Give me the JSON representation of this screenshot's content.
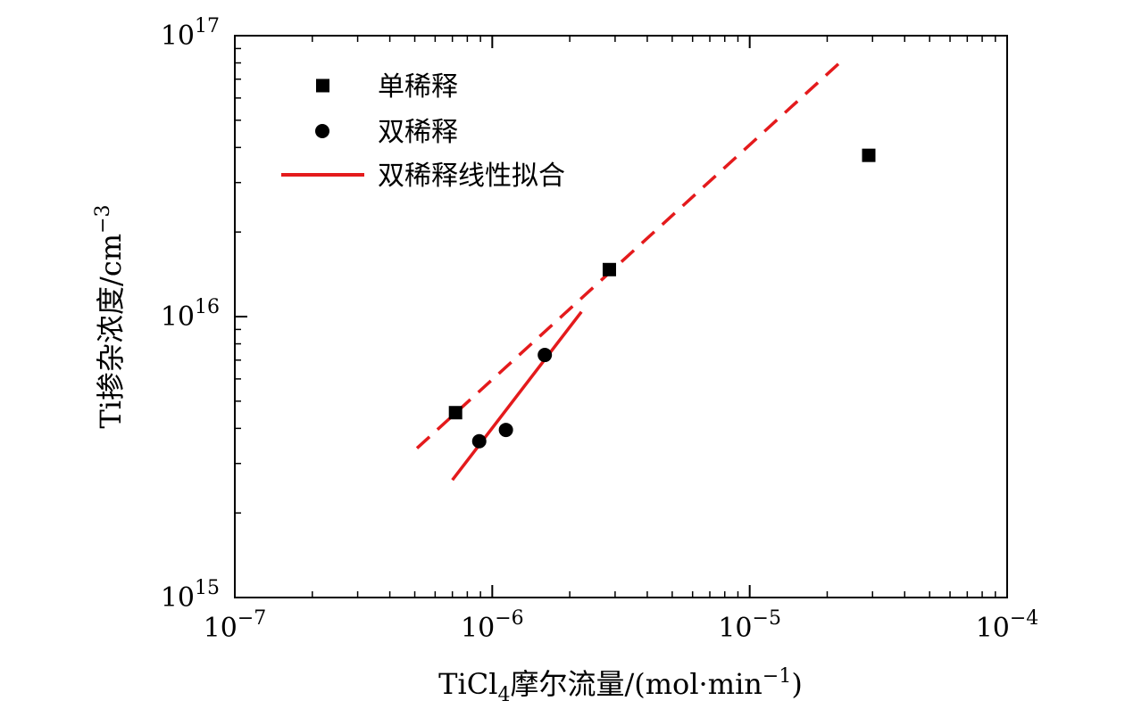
{
  "chart_data": {
    "type": "scatter",
    "x_scale": "log",
    "y_scale": "log",
    "xlim": [
      1e-07,
      0.0001
    ],
    "ylim": [
      1000000000000000.0,
      1e+17
    ],
    "xlabel": "TiCl4摩尔流量/(mol·min−1)",
    "xlabel_parts": {
      "pre": "TiCl",
      "sub": "4",
      "mid": "摩尔流量/(mol·min",
      "sup": "−1",
      "post": ")"
    },
    "ylabel": "Ti掺杂浓度/cm−3",
    "ylabel_parts": {
      "pre": "Ti掺杂浓度/cm",
      "sup": "−3"
    },
    "x_ticks": [
      {
        "value": 1e-07,
        "base": "10",
        "exp": "−7"
      },
      {
        "value": 1e-06,
        "base": "10",
        "exp": "−6"
      },
      {
        "value": 1e-05,
        "base": "10",
        "exp": "−5"
      },
      {
        "value": 0.0001,
        "base": "10",
        "exp": "−4"
      }
    ],
    "y_ticks": [
      {
        "value": 1000000000000000.0,
        "base": "10",
        "exp": "15"
      },
      {
        "value": 1e+16,
        "base": "10",
        "exp": "16"
      },
      {
        "value": 1e+17,
        "base": "10",
        "exp": "17"
      }
    ],
    "grid": false,
    "legend_position": "top-left",
    "series": [
      {
        "name": "单稀释",
        "marker": "square",
        "color": "#000000",
        "points": [
          {
            "x": 7.2e-07,
            "y": 4550000000000000.0
          },
          {
            "x": 2.85e-06,
            "y": 1.47e+16
          },
          {
            "x": 2.9e-05,
            "y": 3.75e+16
          }
        ]
      },
      {
        "name": "双稀释",
        "marker": "circle",
        "color": "#000000",
        "points": [
          {
            "x": 8.9e-07,
            "y": 3600000000000000.0
          },
          {
            "x": 1.13e-06,
            "y": 3950000000000000.0
          },
          {
            "x": 1.6e-06,
            "y": 7300000000000000.0
          }
        ]
      }
    ],
    "lines": [
      {
        "name": "双稀释线性拟合",
        "style": "solid",
        "color": "#e41a1c",
        "from": {
          "x": 7e-07,
          "y": 2620000000000000.0
        },
        "to": {
          "x": 2.22e-06,
          "y": 1.04e+16
        }
      },
      {
        "name": "",
        "style": "dashed",
        "color": "#e41a1c",
        "from": {
          "x": 5.1e-07,
          "y": 3400000000000000.0
        },
        "to": {
          "x": 2.25e-05,
          "y": 8.05e+16
        }
      }
    ],
    "legend": [
      {
        "label": "单稀释",
        "kind": "square"
      },
      {
        "label": "双稀释",
        "kind": "circle"
      },
      {
        "label": "双稀释线性拟合",
        "kind": "line"
      }
    ]
  }
}
